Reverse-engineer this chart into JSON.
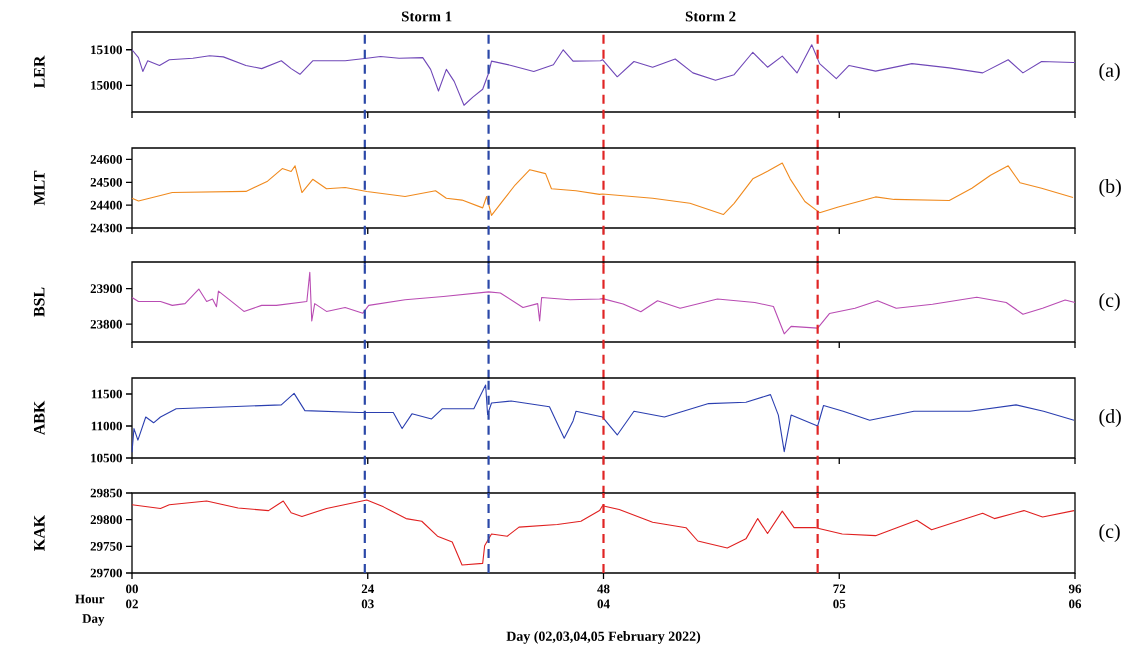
{
  "chart_data": [
    {
      "type": "line",
      "ylabel": "LER",
      "xlim": [
        0,
        96
      ],
      "ylim": [
        14925,
        15150
      ],
      "yticks": [
        15000,
        15100
      ],
      "xticks": [
        {
          "value": 0,
          "label": null
        },
        {
          "value": 24,
          "label": null
        },
        {
          "value": 48,
          "label": null
        },
        {
          "value": 72,
          "label": null
        },
        {
          "value": 96,
          "label": null
        }
      ],
      "tick_labels": "y",
      "x": [
        0,
        0.66,
        1.1,
        1.6,
        2.8,
        3.8,
        6.2,
        7.9,
        9.3,
        11.6,
        13.2,
        15.2,
        16.2,
        17.1,
        18.4,
        21.7,
        23.9,
        25.3,
        27.2,
        29.6,
        30.4,
        31.2,
        32,
        32.8,
        33.8,
        34.7,
        35.7,
        36.3,
        36.6,
        38.6,
        40.9,
        42.9,
        43.9,
        44.9,
        47.7,
        47.9,
        49.4,
        51.1,
        53,
        55.3,
        57.1,
        59.4,
        61.3,
        63.2,
        64.7,
        66.2,
        67.7,
        69.2,
        70,
        71.7,
        73,
        75.7,
        79.4,
        83.2,
        86.6,
        89.2,
        90.7,
        92.6,
        95.8,
        96
      ],
      "series": [
        {
          "color": "#7048b8",
          "values": [
            15100,
            15078,
            15039,
            15069,
            15056,
            15072,
            15076,
            15083,
            15080,
            15056,
            15047,
            15069,
            15047,
            15031,
            15069,
            15069,
            15076,
            15081,
            15076,
            15078,
            15045,
            14984,
            15045,
            15011,
            14944,
            14967,
            14989,
            15034,
            15068,
            15056,
            15039,
            15058,
            15100,
            15068,
            15069,
            15072,
            15024,
            15067,
            15051,
            15074,
            15035,
            15014,
            15030,
            15093,
            15051,
            15082,
            15035,
            15114,
            15061,
            15019,
            15056,
            15040,
            15061,
            15049,
            15035,
            15072,
            15035,
            15067,
            15064,
            15064
          ]
        }
      ],
      "ref_lines": [
        {
          "axis": "x",
          "value": 23.7,
          "color": "#2b48a8",
          "line_style": "dashed"
        },
        {
          "axis": "x",
          "value": 36.3,
          "color": "#2b48a8",
          "line_style": "dashed"
        },
        {
          "axis": "x",
          "value": 48,
          "color": "#e02424",
          "line_style": "dashed"
        },
        {
          "axis": "x",
          "value": 69.8,
          "color": "#e02424",
          "line_style": "dashed"
        }
      ],
      "annotations": [
        "(a)",
        "Storm 1",
        "Storm 2"
      ]
    },
    {
      "type": "line",
      "ylabel": "MLT",
      "xlim": [
        0,
        96
      ],
      "ylim": [
        24300,
        24650
      ],
      "yticks": [
        24300,
        24400,
        24500,
        24600
      ],
      "xticks": [
        {
          "value": 0,
          "label": null
        },
        {
          "value": 24,
          "label": null
        },
        {
          "value": 48,
          "label": null
        },
        {
          "value": 72,
          "label": null
        },
        {
          "value": 96,
          "label": null
        }
      ],
      "tick_labels": "y",
      "x": [
        0,
        0.66,
        2.9,
        4.1,
        11.6,
        13.8,
        15.3,
        16.2,
        16.6,
        17.3,
        18.4,
        19.8,
        21.7,
        23.9,
        27.8,
        30.9,
        32,
        33.6,
        35.7,
        36.1,
        36.6,
        37.8,
        39,
        40.5,
        42.1,
        42.7,
        45.2,
        47.6,
        47.9,
        53,
        56.8,
        60.2,
        61.3,
        63.2,
        64.7,
        66.2,
        67,
        68.5,
        70,
        71.9,
        75.7,
        77.6,
        83.2,
        85.5,
        87.4,
        89.2,
        90.4,
        92.6,
        95.8
      ],
      "series": [
        {
          "color": "#f08a1e",
          "values": [
            24430,
            24418,
            24442,
            24455,
            24460,
            24505,
            24560,
            24547,
            24572,
            24455,
            24513,
            24472,
            24477,
            24460,
            24438,
            24463,
            24430,
            24422,
            24388,
            24438,
            24355,
            24422,
            24488,
            24555,
            24538,
            24472,
            24463,
            24447,
            24449,
            24430,
            24408,
            24359,
            24408,
            24515,
            24548,
            24584,
            24515,
            24416,
            24367,
            24392,
            24436,
            24425,
            24420,
            24474,
            24531,
            24572,
            24498,
            24474,
            24433
          ]
        }
      ],
      "ref_lines": [
        {
          "axis": "x",
          "value": 23.7,
          "color": "#2b48a8",
          "line_style": "dashed"
        },
        {
          "axis": "x",
          "value": 36.3,
          "color": "#2b48a8",
          "line_style": "dashed"
        },
        {
          "axis": "x",
          "value": 48,
          "color": "#e02424",
          "line_style": "dashed"
        },
        {
          "axis": "x",
          "value": 69.8,
          "color": "#e02424",
          "line_style": "dashed"
        }
      ],
      "annotations": [
        "(b)"
      ]
    },
    {
      "type": "line",
      "ylabel": "BSL",
      "xlim": [
        0,
        96
      ],
      "ylim": [
        23750,
        23975
      ],
      "yticks": [
        23800,
        23900
      ],
      "xticks": [
        {
          "value": 0,
          "label": null
        },
        {
          "value": 24,
          "label": null
        },
        {
          "value": 48,
          "label": null
        },
        {
          "value": 72,
          "label": null
        },
        {
          "value": 96,
          "label": null
        }
      ],
      "tick_labels": "y",
      "x": [
        0,
        0.66,
        2.9,
        4.1,
        5.4,
        6.8,
        7.6,
        8.2,
        8.6,
        8.8,
        9.9,
        11.4,
        13.2,
        14.7,
        17.8,
        18.1,
        18.3,
        18.6,
        19.8,
        21.7,
        23.5,
        24.1,
        27.8,
        31.7,
        36.3,
        37.5,
        39.8,
        41.3,
        41.5,
        41.7,
        44.6,
        47.6,
        47.9,
        50,
        51.8,
        53.5,
        55.8,
        59.6,
        63.4,
        65.3,
        66.4,
        67.1,
        69.8,
        71,
        73.6,
        75.9,
        77.8,
        81.5,
        86,
        89,
        90.7,
        92.7,
        95,
        96
      ],
      "series": [
        {
          "color": "#b94cb3",
          "values": [
            23875,
            23864,
            23864,
            23853,
            23858,
            23899,
            23864,
            23871,
            23849,
            23893,
            23869,
            23836,
            23853,
            23853,
            23864,
            23946,
            23809,
            23858,
            23836,
            23847,
            23831,
            23853,
            23869,
            23878,
            23891,
            23888,
            23847,
            23858,
            23809,
            23875,
            23869,
            23871,
            23872,
            23857,
            23835,
            23866,
            23845,
            23871,
            23861,
            23850,
            23773,
            23794,
            23789,
            23830,
            23845,
            23866,
            23845,
            23856,
            23876,
            23861,
            23828,
            23845,
            23868,
            23861
          ]
        }
      ],
      "ref_lines": [
        {
          "axis": "x",
          "value": 23.7,
          "color": "#2b48a8",
          "line_style": "dashed"
        },
        {
          "axis": "x",
          "value": 36.3,
          "color": "#2b48a8",
          "line_style": "dashed"
        },
        {
          "axis": "x",
          "value": 48,
          "color": "#e02424",
          "line_style": "dashed"
        },
        {
          "axis": "x",
          "value": 69.8,
          "color": "#e02424",
          "line_style": "dashed"
        }
      ],
      "annotations": [
        "(c)"
      ]
    },
    {
      "type": "line",
      "ylabel": "ABK",
      "xlim": [
        0,
        96
      ],
      "ylim": [
        10500,
        11750
      ],
      "yticks": [
        10500,
        11000,
        11500
      ],
      "xticks": [
        {
          "value": 0,
          "label": null
        },
        {
          "value": 24,
          "label": null
        },
        {
          "value": 48,
          "label": null
        },
        {
          "value": 72,
          "label": null
        },
        {
          "value": 96,
          "label": null
        }
      ],
      "tick_labels": "y",
      "x": [
        0,
        0.2,
        0.6,
        1.4,
        2.2,
        2.9,
        4.5,
        15.2,
        16.5,
        17.6,
        23.1,
        26.6,
        27.5,
        28.5,
        30.5,
        31.6,
        34.8,
        36,
        36.2,
        36.6,
        38.6,
        42.5,
        44,
        44.9,
        45.2,
        47.9,
        49.4,
        51.1,
        54.2,
        58.7,
        62.5,
        65,
        65.8,
        66.4,
        67.1,
        69.8,
        70.4,
        72.4,
        75.1,
        79.6,
        85.3,
        90,
        92.8,
        95.9
      ],
      "series": [
        {
          "color": "#2b3fb0",
          "values": [
            10590,
            10960,
            10780,
            11140,
            11050,
            11140,
            11270,
            11330,
            11510,
            11240,
            11210,
            11210,
            10960,
            11190,
            11110,
            11270,
            11270,
            11640,
            11180,
            11360,
            11390,
            11300,
            10810,
            11080,
            11230,
            11140,
            10860,
            11230,
            11140,
            11350,
            11370,
            11490,
            11170,
            10600,
            11170,
            11000,
            11320,
            11230,
            11090,
            11230,
            11230,
            11330,
            11230,
            11090
          ]
        }
      ],
      "ref_lines": [
        {
          "axis": "x",
          "value": 23.7,
          "color": "#2b48a8",
          "line_style": "dashed"
        },
        {
          "axis": "x",
          "value": 36.3,
          "color": "#2b48a8",
          "line_style": "dashed"
        },
        {
          "axis": "x",
          "value": 48,
          "color": "#e02424",
          "line_style": "dashed"
        },
        {
          "axis": "x",
          "value": 69.8,
          "color": "#e02424",
          "line_style": "dashed"
        }
      ],
      "annotations": [
        "(d)"
      ]
    },
    {
      "type": "line",
      "ylabel": "KAK",
      "xlabel": "Day (02,03,04,05 February 2022)",
      "xlim": [
        0,
        96
      ],
      "ylim": [
        29700,
        29850
      ],
      "yticks": [
        29700,
        29750,
        29800,
        29850
      ],
      "xticks": [
        {
          "value": 0,
          "label": "00"
        },
        24,
        48,
        72,
        96
      ],
      "x2lim": [
        2,
        6
      ],
      "x2ticks": [
        {
          "value": 2,
          "label": "02"
        },
        {
          "value": 3,
          "label": "03"
        },
        {
          "value": 4,
          "label": "04"
        },
        {
          "value": 5,
          "label": "05"
        },
        {
          "value": 6,
          "label": "06"
        }
      ],
      "x": [
        0,
        2.9,
        3.8,
        7.6,
        10.8,
        13.9,
        15.4,
        16.2,
        17.3,
        19.8,
        23.9,
        25.6,
        27.9,
        29.5,
        31.1,
        32.6,
        33.6,
        35.7,
        35.9,
        36.6,
        38.2,
        39.4,
        43.3,
        45.7,
        47.6,
        47.9,
        49.6,
        53,
        56.4,
        57.6,
        60.6,
        62.5,
        63.7,
        64.7,
        66.2,
        67.4,
        69.6,
        72.3,
        75.7,
        79.9,
        81.4,
        86.6,
        87.8,
        90.8,
        92.7,
        95.9
      ],
      "series": [
        {
          "color": "#e02020",
          "values": [
            29828,
            29821,
            29828,
            29835,
            29822,
            29817,
            29835,
            29813,
            29806,
            29821,
            29837,
            29824,
            29802,
            29797,
            29769,
            29758,
            29715,
            29718,
            29751,
            29773,
            29769,
            29786,
            29791,
            29797,
            29817,
            29826,
            29819,
            29795,
            29785,
            29760,
            29747,
            29764,
            29802,
            29774,
            29816,
            29785,
            29785,
            29773,
            29770,
            29799,
            29781,
            29812,
            29802,
            29817,
            29805,
            29817
          ]
        }
      ],
      "ref_lines": [
        {
          "axis": "x",
          "value": 23.7,
          "color": "#2b48a8",
          "line_style": "dashed"
        },
        {
          "axis": "x",
          "value": 36.3,
          "color": "#2b48a8",
          "line_style": "dashed"
        },
        {
          "axis": "x",
          "value": 48,
          "color": "#e02424",
          "line_style": "dashed"
        },
        {
          "axis": "x",
          "value": 69.8,
          "color": "#e02424",
          "line_style": "dashed"
        }
      ],
      "annotations": [
        "(c)",
        "Hour",
        "Day"
      ]
    }
  ]
}
